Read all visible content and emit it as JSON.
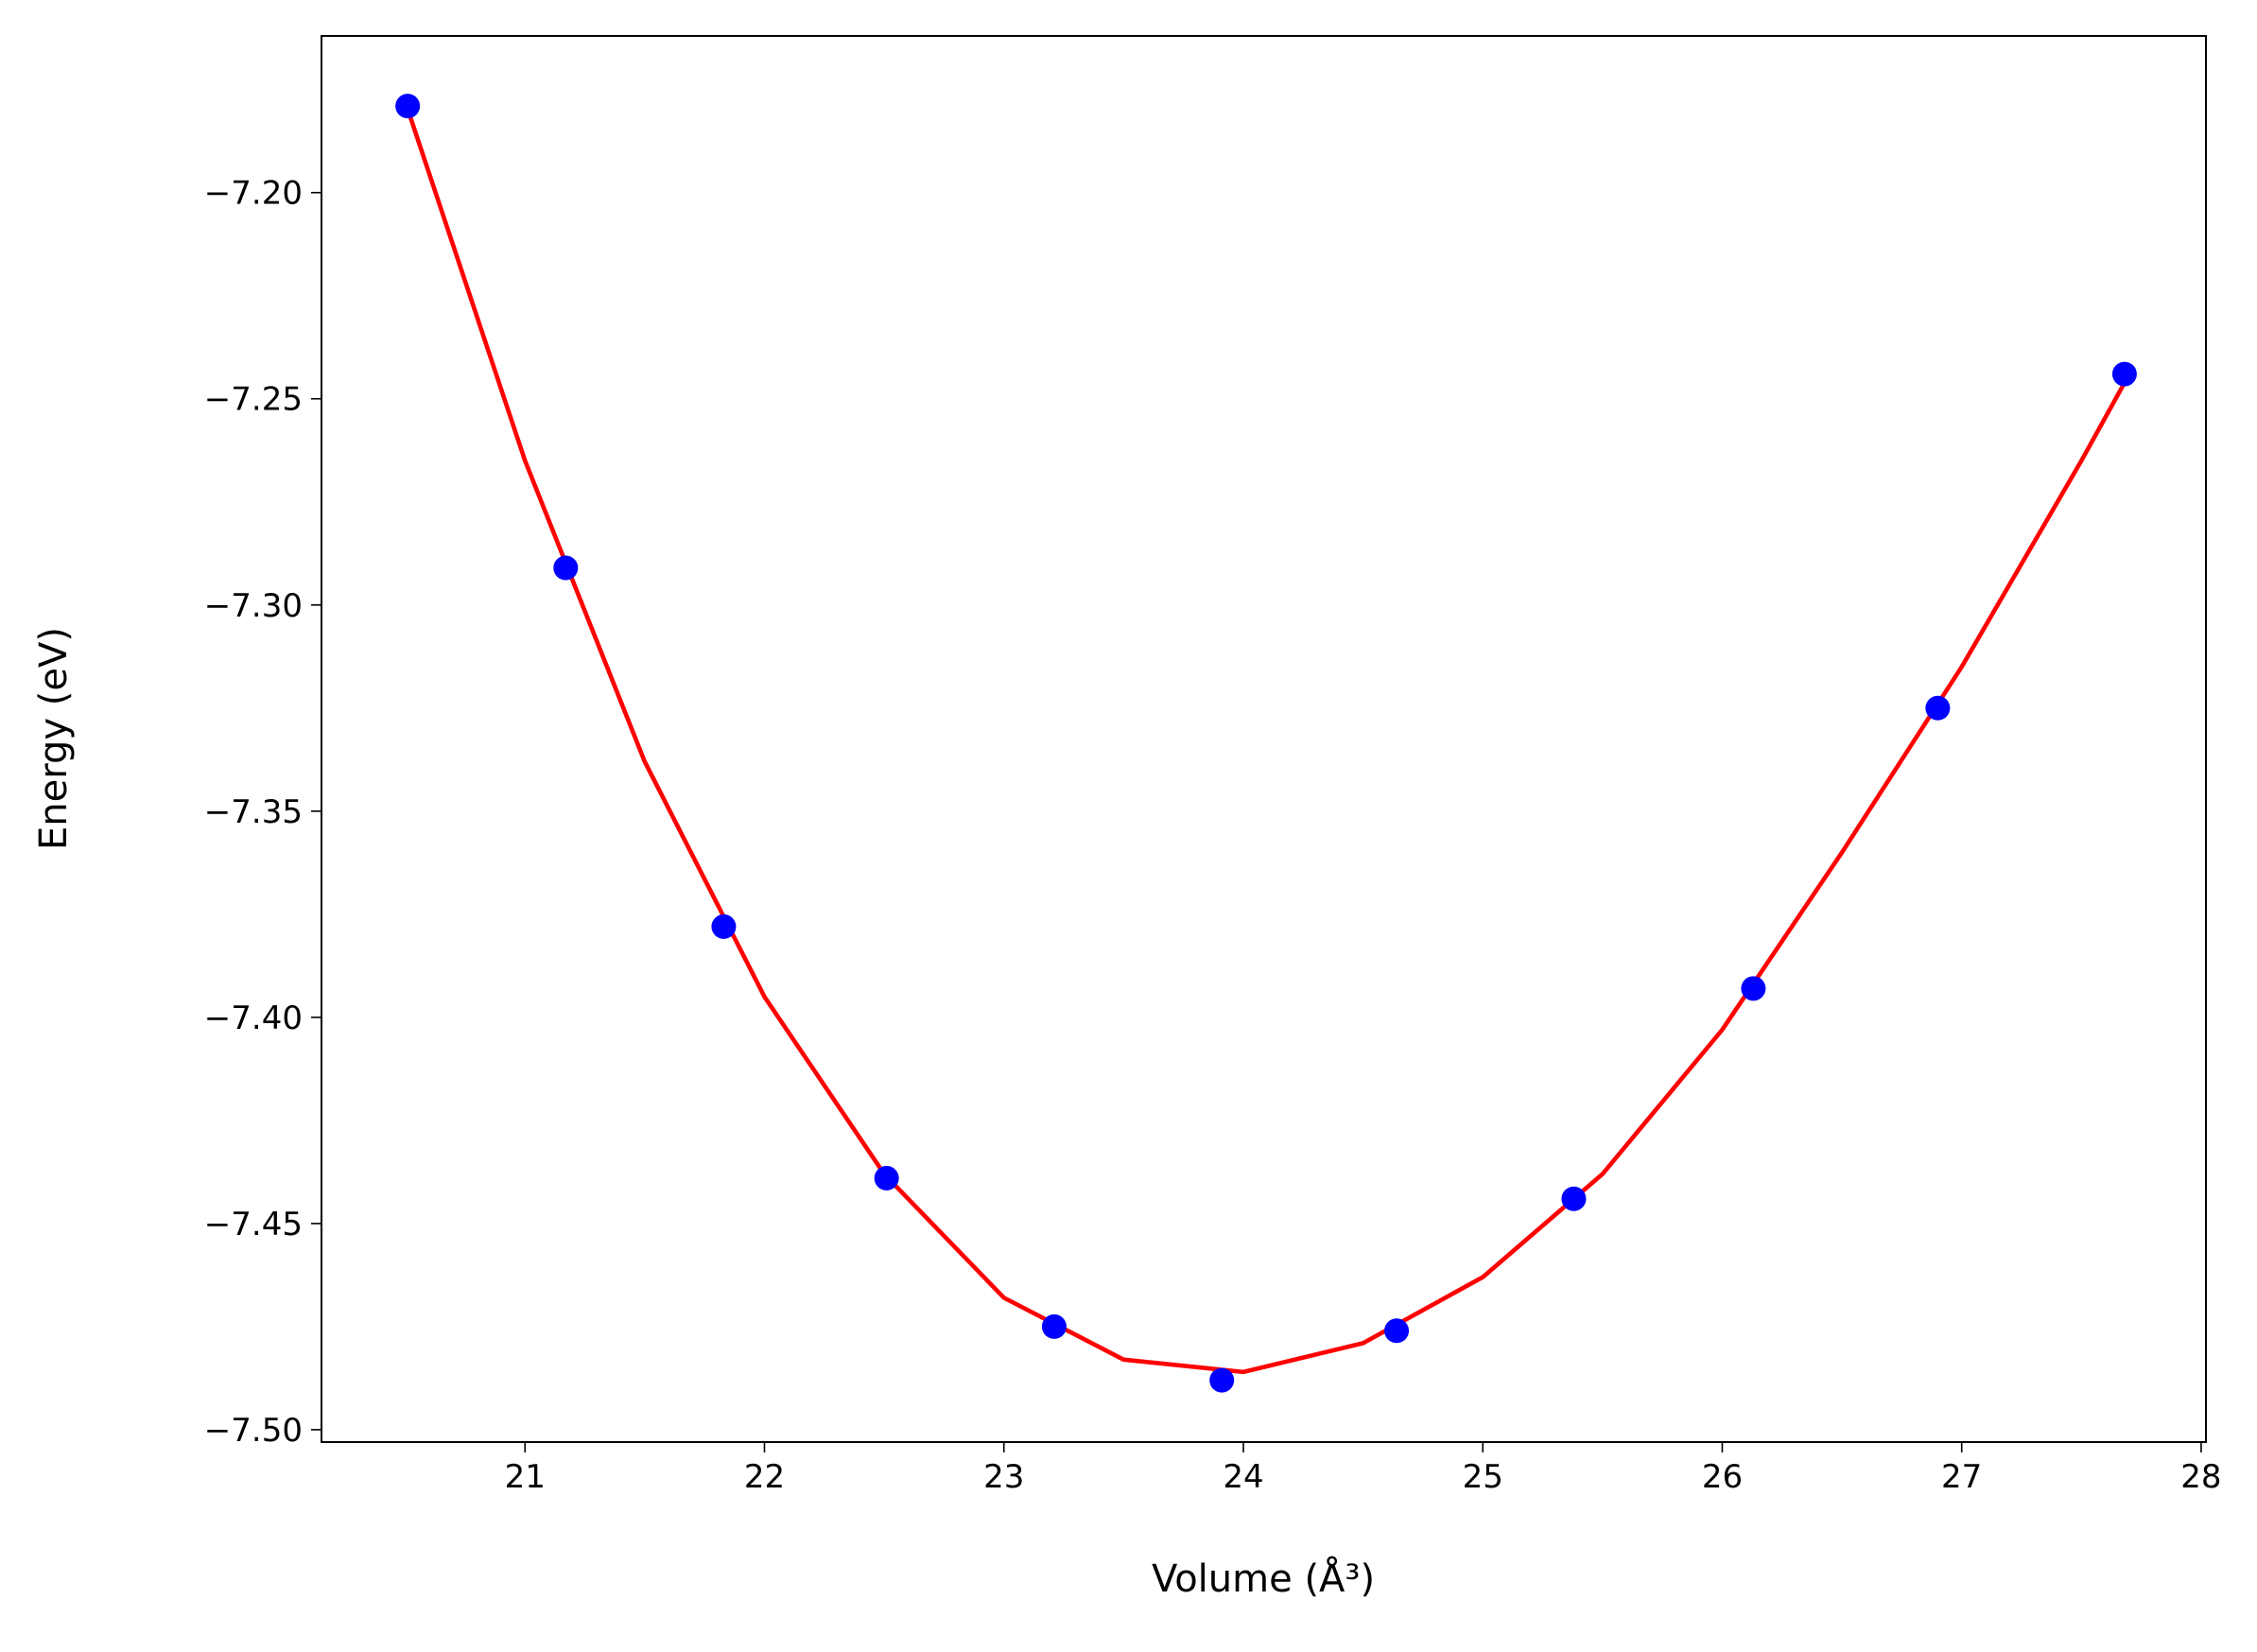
{
  "chart_data": {
    "type": "scatter",
    "x_label": "Volume (Å³)",
    "y_label": "Energy (eV)",
    "xlim": [
      20.15,
      28.02
    ],
    "ylim": [
      -7.503,
      -7.162
    ],
    "xticks": [
      21,
      22,
      23,
      24,
      25,
      26,
      27,
      28
    ],
    "yticks": [
      {
        "value": -7.2,
        "label": "−7.20"
      },
      {
        "value": -7.25,
        "label": "−7.25"
      },
      {
        "value": -7.3,
        "label": "−7.30"
      },
      {
        "value": -7.35,
        "label": "−7.35"
      },
      {
        "value": -7.4,
        "label": "−7.40"
      },
      {
        "value": -7.45,
        "label": "−7.45"
      },
      {
        "value": -7.5,
        "label": "−7.50"
      }
    ],
    "grid": false,
    "series": [
      {
        "mode": "line",
        "color": "#ff0000",
        "x": [
          20.5,
          21.0,
          21.5,
          22.0,
          22.5,
          23.0,
          23.5,
          24.0,
          24.5,
          25.0,
          25.5,
          26.0,
          26.5,
          27.0,
          27.5,
          27.7
        ],
        "values": [
          -7.178,
          -7.265,
          -7.338,
          -7.395,
          -7.438,
          -7.468,
          -7.483,
          -7.486,
          -7.479,
          -7.463,
          -7.438,
          -7.403,
          -7.36,
          -7.315,
          -7.265,
          -7.244
        ]
      },
      {
        "mode": "markers",
        "color": "#0000ff",
        "x": [
          20.51,
          21.17,
          21.83,
          22.51,
          23.21,
          23.91,
          24.64,
          25.38,
          26.13,
          26.9,
          27.68
        ],
        "values": [
          -7.179,
          -7.291,
          -7.378,
          -7.439,
          -7.475,
          -7.488,
          -7.476,
          -7.444,
          -7.393,
          -7.325,
          -7.244
        ]
      }
    ]
  }
}
